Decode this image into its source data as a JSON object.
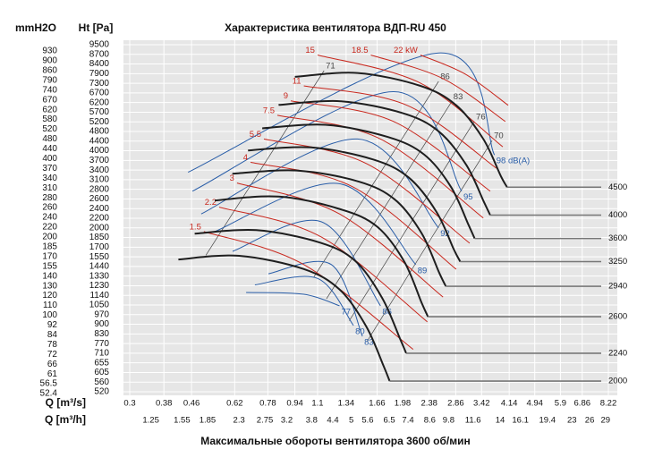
{
  "chart_data": {
    "type": "line",
    "title": "Характеристика вентилятора ВДП-RU 450",
    "y_label": "Ht [Pa]",
    "y2_label": "mmH2O",
    "x_label": "Q [m³/s]",
    "x2_label": "Q [m³/h]",
    "caption": "Максимальные обороты вентилятора 3600 об/мин",
    "xscale": "log",
    "xlim": [
      0.3,
      8.22
    ],
    "xticks": [
      0.3,
      0.38,
      0.46,
      0.62,
      0.78,
      0.94,
      1.1,
      1.34,
      1.66,
      1.98,
      2.38,
      2.86,
      3.42,
      4.14,
      4.94,
      5.9,
      6.86,
      8.22
    ],
    "x2lim": [
      1.08,
      29.59
    ],
    "x2ticks": [
      1.25,
      1.55,
      1.85,
      2.3,
      2.75,
      3.2,
      3.8,
      4.4,
      5,
      5.6,
      6.5,
      7.4,
      8.6,
      9.8,
      11.6,
      14,
      16.1,
      19.4,
      23,
      26,
      29
    ],
    "yscale": "even-ticks",
    "ylim": [
      520,
      9500
    ],
    "yticks": [
      520,
      560,
      605,
      655,
      710,
      770,
      830,
      900,
      970,
      1050,
      1140,
      1230,
      1330,
      1440,
      1550,
      1700,
      1850,
      2000,
      2200,
      2400,
      2600,
      2800,
      3100,
      3400,
      3700,
      4000,
      4400,
      4800,
      5200,
      5700,
      6200,
      6700,
      7300,
      7900,
      8400,
      8700,
      9500
    ],
    "y2lim": [
      52.4,
      930
    ],
    "y2ticks": [
      52.4,
      56.5,
      61,
      66,
      72,
      78,
      84,
      92,
      100,
      110,
      120,
      130,
      140,
      155,
      170,
      185,
      200,
      220,
      240,
      260,
      280,
      310,
      340,
      370,
      400,
      440,
      480,
      520,
      580,
      620,
      670,
      740,
      790,
      860,
      900,
      930
    ],
    "grid": true,
    "speed_curves": {
      "color": "#1e1e1e",
      "width": 2,
      "series": [
        {
          "name": "4500",
          "x": [
            0.94,
            1.45,
            2.24,
            2.87,
            3.46,
            3.91,
            4.08
          ],
          "values": [
            7700,
            7935,
            7140,
            6060,
            4490,
            3205,
            2867
          ]
        },
        {
          "name": "4000",
          "x": [
            0.84,
            1.29,
            1.99,
            2.55,
            3.08,
            3.48,
            3.63
          ],
          "values": [
            6080,
            6270,
            5640,
            4790,
            3550,
            2530,
            2265
          ]
        },
        {
          "name": "3600",
          "x": [
            0.75,
            1.16,
            1.79,
            2.3,
            2.77,
            3.13,
            3.26
          ],
          "values": [
            4930,
            5080,
            4570,
            3880,
            2870,
            2050,
            1835
          ]
        },
        {
          "name": "3250",
          "x": [
            0.68,
            1.05,
            1.62,
            2.07,
            2.5,
            2.82,
            2.95
          ],
          "values": [
            4015,
            4140,
            3725,
            3160,
            2340,
            1670,
            1495
          ]
        },
        {
          "name": "2940",
          "x": [
            0.61,
            0.95,
            1.46,
            1.88,
            2.26,
            2.55,
            2.67
          ],
          "values": [
            3285,
            3385,
            3045,
            2585,
            1915,
            1370,
            1225
          ]
        },
        {
          "name": "2600",
          "x": [
            0.54,
            0.84,
            1.29,
            1.66,
            2.0,
            2.26,
            2.36
          ],
          "values": [
            2570,
            2650,
            2385,
            2025,
            1500,
            1070,
            955
          ]
        },
        {
          "name": "2240",
          "x": [
            0.47,
            0.72,
            1.12,
            1.43,
            1.72,
            1.95,
            2.03
          ],
          "values": [
            1910,
            1965,
            1770,
            1500,
            1115,
            795,
            710
          ]
        },
        {
          "name": "2000",
          "x": [
            0.42,
            0.64,
            1.0,
            1.28,
            1.54,
            1.74,
            1.81
          ],
          "values": [
            1520,
            1565,
            1410,
            1195,
            885,
            635,
            565
          ]
        }
      ]
    },
    "power_curves": {
      "color": "#c8281e",
      "width": 1,
      "series": [
        {
          "name": "1.5",
          "x": [
            0.501,
            1.0,
            2.13
          ],
          "values": [
            1942,
            1461,
            734
          ]
        },
        {
          "name": "2.2",
          "x": [
            0.557,
            1.13,
            2.35
          ],
          "values": [
            2431,
            1857,
            918
          ]
        },
        {
          "name": "3",
          "x": [
            0.63,
            1.28,
            2.62
          ],
          "values": [
            2998,
            2290,
            1124
          ]
        },
        {
          "name": "4",
          "x": [
            0.692,
            1.41,
            2.87
          ],
          "values": [
            3643,
            2867,
            1408
          ]
        },
        {
          "name": "5.5",
          "x": [
            0.759,
            1.55,
            3.15
          ],
          "values": [
            4490,
            3590,
            1762
          ]
        },
        {
          "name": "7.5",
          "x": [
            0.833,
            1.7,
            3.46
          ],
          "values": [
            5540,
            4490,
            2206
          ]
        },
        {
          "name": "9",
          "x": [
            0.914,
            1.86,
            3.63
          ],
          "values": [
            6290,
            5220,
            2762
          ]
        },
        {
          "name": "11",
          "x": [
            1.0,
            2.04,
            3.79
          ],
          "values": [
            7140,
            6060,
            3456
          ]
        },
        {
          "name": "15",
          "x": [
            1.1,
            2.24,
            3.96
          ],
          "values": [
            8680,
            7310,
            4167
          ]
        },
        {
          "name": "18.5",
          "x": [
            1.59,
            2.62,
            4.03
          ],
          "values": [
            8680,
            7590,
            5220
          ]
        },
        {
          "name": "22 kW",
          "x": [
            2.24,
            3.05,
            4.11
          ],
          "values": [
            8680,
            7880,
            6060
          ]
        }
      ]
    },
    "noise_curves": {
      "color": "#2a5ea8",
      "width": 1,
      "series": [
        {
          "name": "77",
          "x": [
            0.671,
            1.0,
            1.28
          ],
          "values": [
            1167,
            1150,
            1043
          ]
        },
        {
          "name": "80",
          "x": [
            0.713,
            1.1,
            1.41
          ],
          "values": [
            1239,
            1306,
            891
          ]
        },
        {
          "name": "83",
          "x": [
            0.783,
            1.21,
            1.5
          ],
          "values": [
            1356,
            1461,
            815
          ]
        },
        {
          "name": "86",
          "x": [
            0.611,
            1.13,
            1.7
          ],
          "values": [
            1635,
            2125,
            1043
          ]
        },
        {
          "name": "89",
          "x": [
            0.54,
            1.28,
            2.17
          ],
          "values": [
            1942,
            2975,
            1461
          ]
        },
        {
          "name": "92",
          "x": [
            0.492,
            1.45,
            2.54
          ],
          "values": [
            2290,
            4490,
            2002
          ]
        },
        {
          "name": "95",
          "x": [
            0.463,
            1.86,
            2.98
          ],
          "values": [
            2762,
            6780,
            2762
          ]
        },
        {
          "name": "98 dB(A)",
          "x": [
            0.449,
            2.54,
            3.74
          ],
          "values": [
            3330,
            8815,
            3870
          ]
        }
      ]
    },
    "efficiency_lines": {
      "color": "#444444",
      "width": 0.7,
      "series": [
        {
          "name": "71",
          "x": [
            0.508,
            1.15
          ],
          "values": [
            1574,
            8055
          ]
        },
        {
          "name": "86",
          "x": [
            1.07,
            2.54
          ],
          "values": [
            1316,
            7420
          ]
        },
        {
          "name": "83",
          "x": [
            1.17,
            2.78
          ],
          "values": [
            1108,
            6245
          ]
        },
        {
          "name": "76",
          "x": [
            1.37,
            3.25
          ],
          "values": [
            926,
            5220
          ]
        },
        {
          "name": "70",
          "x": [
            1.55,
            3.68
          ],
          "values": [
            785,
            4425
          ]
        }
      ]
    }
  }
}
